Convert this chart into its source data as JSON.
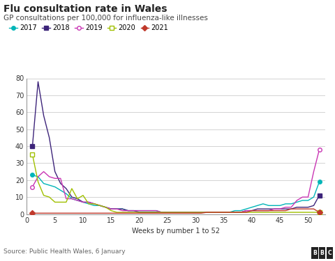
{
  "title": "Flu consultation rate in Wales",
  "subtitle": "GP consultations per 100,000 for influenza-like illnesses",
  "xlabel": "Weeks by number 1 to 52",
  "source": "Source: Public Health Wales, 6 January",
  "ylim": [
    0,
    80
  ],
  "xlim": [
    0,
    53
  ],
  "yticks": [
    0,
    10,
    20,
    30,
    40,
    50,
    60,
    70,
    80
  ],
  "xticks": [
    0,
    5,
    10,
    15,
    20,
    25,
    30,
    35,
    40,
    45,
    50
  ],
  "series": {
    "2017": {
      "color": "#00b5b8",
      "marker": "o",
      "filled": true,
      "x": [
        1,
        2,
        3,
        4,
        5,
        6,
        7,
        8,
        9,
        10,
        11,
        12,
        13,
        14,
        15,
        16,
        17,
        18,
        19,
        20,
        21,
        22,
        23,
        24,
        25,
        26,
        27,
        28,
        29,
        30,
        31,
        32,
        33,
        34,
        35,
        36,
        37,
        38,
        39,
        40,
        41,
        42,
        43,
        44,
        45,
        46,
        47,
        48,
        49,
        50,
        51,
        52
      ],
      "y": [
        23,
        22,
        18,
        17,
        16,
        14,
        12,
        9,
        8,
        7,
        6,
        5,
        5,
        4,
        3,
        3,
        3,
        2,
        2,
        2,
        2,
        2,
        2,
        1,
        1,
        1,
        1,
        1,
        1,
        1,
        1,
        1,
        1,
        1,
        1,
        1,
        2,
        2,
        3,
        4,
        5,
        6,
        5,
        5,
        5,
        6,
        6,
        7,
        8,
        8,
        10,
        19
      ]
    },
    "2018": {
      "color": "#3d247a",
      "marker": "s",
      "filled": true,
      "x": [
        1,
        2,
        3,
        4,
        5,
        6,
        7,
        8,
        9,
        10,
        11,
        12,
        13,
        14,
        15,
        16,
        17,
        18,
        19,
        20,
        21,
        22,
        23,
        24,
        25,
        26,
        27,
        28,
        29,
        30,
        31,
        32,
        33,
        34,
        35,
        36,
        37,
        38,
        39,
        40,
        41,
        42,
        43,
        44,
        45,
        46,
        47,
        48,
        49,
        50,
        51,
        52
      ],
      "y": [
        40,
        78,
        58,
        45,
        25,
        18,
        15,
        10,
        9,
        7,
        7,
        6,
        5,
        4,
        3,
        3,
        3,
        2,
        2,
        1,
        1,
        1,
        1,
        1,
        1,
        1,
        1,
        1,
        1,
        1,
        1,
        1,
        1,
        1,
        1,
        1,
        1,
        1,
        2,
        2,
        3,
        3,
        3,
        3,
        3,
        3,
        3,
        4,
        4,
        4,
        5,
        11
      ]
    },
    "2019": {
      "color": "#c936b4",
      "marker": "o",
      "filled": false,
      "x": [
        1,
        2,
        3,
        4,
        5,
        6,
        7,
        8,
        9,
        10,
        11,
        12,
        13,
        14,
        15,
        16,
        17,
        18,
        19,
        20,
        21,
        22,
        23,
        24,
        25,
        26,
        27,
        28,
        29,
        30,
        31,
        32,
        33,
        34,
        35,
        36,
        37,
        38,
        39,
        40,
        41,
        42,
        43,
        44,
        45,
        46,
        47,
        48,
        49,
        50,
        51,
        52
      ],
      "y": [
        16,
        22,
        25,
        22,
        21,
        21,
        9,
        9,
        8,
        7,
        7,
        6,
        5,
        4,
        3,
        3,
        2,
        2,
        2,
        2,
        2,
        2,
        2,
        1,
        1,
        1,
        1,
        1,
        1,
        1,
        1,
        1,
        1,
        1,
        1,
        1,
        1,
        1,
        2,
        2,
        2,
        2,
        2,
        3,
        3,
        4,
        4,
        8,
        10,
        10,
        25,
        38
      ]
    },
    "2020": {
      "color": "#a0c000",
      "marker": "s",
      "filled": false,
      "x": [
        1,
        2,
        3,
        4,
        5,
        6,
        7,
        8,
        9,
        10,
        11,
        12,
        13,
        14,
        15,
        16,
        17,
        18,
        19,
        20,
        21,
        22,
        23,
        24,
        25,
        26,
        27,
        28,
        29,
        30,
        31,
        32,
        33,
        34,
        35,
        36,
        37,
        38,
        39,
        40,
        41,
        42,
        43,
        44,
        45,
        46,
        47,
        48,
        49,
        50,
        51,
        52
      ],
      "y": [
        35,
        19,
        11,
        10,
        7,
        7,
        7,
        15,
        9,
        11,
        6,
        6,
        5,
        4,
        2,
        1,
        1,
        1,
        1,
        1,
        1,
        1,
        1,
        1,
        1,
        1,
        1,
        1,
        1,
        1,
        1,
        1,
        1,
        1,
        1,
        1,
        1,
        1,
        1,
        1,
        1,
        1,
        1,
        1,
        1,
        1,
        1,
        1,
        1,
        1,
        1,
        1
      ]
    },
    "2021": {
      "color": "#c0392b",
      "marker": "D",
      "filled": true,
      "x": [
        1,
        2,
        3,
        4,
        5,
        6,
        7,
        8,
        9,
        10,
        11,
        12,
        13,
        14,
        15,
        16,
        17,
        18,
        19,
        20,
        21,
        22,
        23,
        24,
        25,
        26,
        27,
        28,
        29,
        30,
        31,
        32,
        33,
        34,
        35,
        36,
        37,
        38,
        39,
        40,
        41,
        42,
        43,
        44,
        45,
        46,
        47,
        48,
        49,
        50,
        51,
        52
      ],
      "y": [
        0.5,
        0.5,
        0.5,
        0.5,
        0.5,
        0.5,
        0.5,
        0.5,
        0.5,
        0.5,
        0.5,
        0.5,
        0.5,
        0.5,
        0.5,
        0.5,
        0.5,
        0.5,
        0.5,
        0.5,
        0.5,
        0.5,
        0.5,
        0.5,
        0.5,
        0.5,
        0.5,
        0.5,
        0.5,
        0.5,
        0.5,
        1,
        1,
        1,
        1,
        1,
        1,
        1,
        1,
        2,
        2,
        2,
        2,
        2,
        2,
        2,
        3,
        3,
        3,
        3,
        3,
        1
      ]
    }
  },
  "legend_order": [
    "2017",
    "2018",
    "2019",
    "2020",
    "2021"
  ],
  "bg_color": "#ffffff",
  "plot_bg": "#ffffff"
}
